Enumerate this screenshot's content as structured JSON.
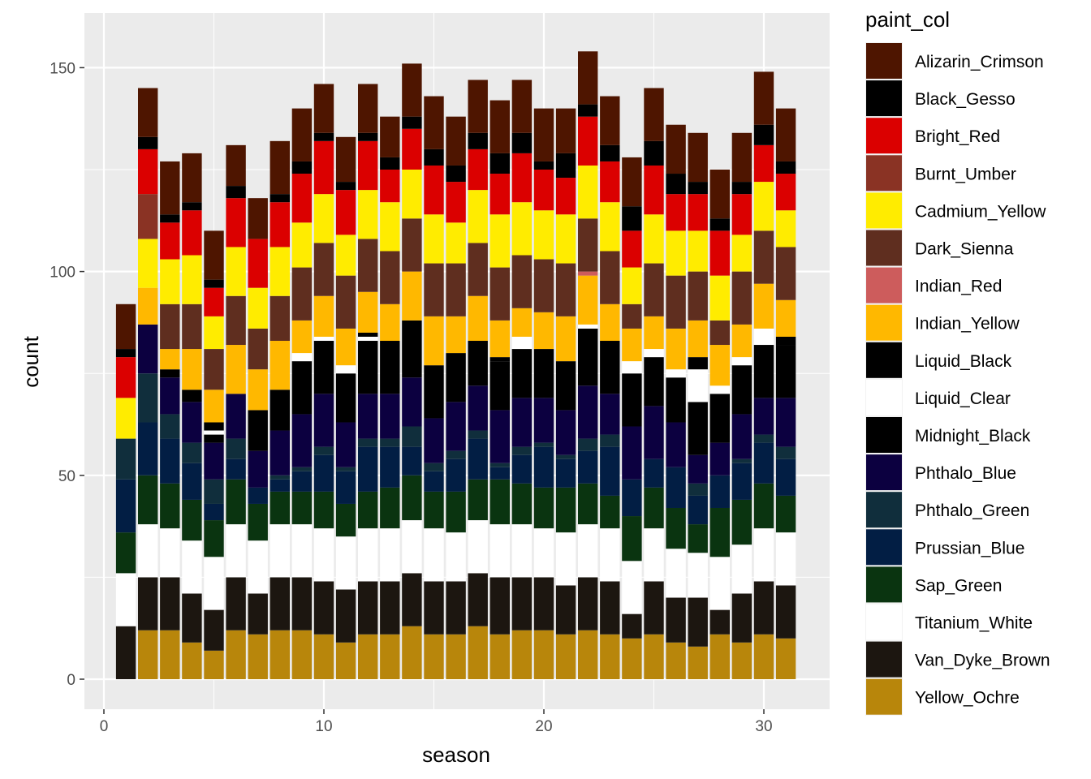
{
  "chart_data": {
    "type": "bar",
    "stacked": true,
    "xlabel": "season",
    "ylabel": "count",
    "legend_title": "paint_col",
    "legend_position": "right",
    "grid": true,
    "xlim": [
      0,
      31
    ],
    "ylim": [
      0,
      155
    ],
    "x_ticks": [
      0,
      10,
      20,
      30
    ],
    "y_ticks": [
      0,
      50,
      100,
      150
    ],
    "x_tick_labels": [
      "0",
      "10",
      "20",
      "30"
    ],
    "y_tick_labels": [
      "0",
      "50",
      "100",
      "150"
    ],
    "x": [
      1,
      2,
      3,
      4,
      5,
      6,
      7,
      8,
      9,
      10,
      11,
      12,
      13,
      14,
      15,
      16,
      17,
      18,
      19,
      20,
      21,
      22,
      23,
      24,
      25,
      26,
      27,
      28,
      29,
      30,
      31
    ],
    "series": [
      {
        "name": "Yellow_Ochre",
        "color": "#B8860B",
        "values": [
          0,
          12,
          12,
          9,
          7,
          12,
          11,
          12,
          12,
          11,
          9,
          11,
          11,
          13,
          11,
          11,
          13,
          11,
          12,
          12,
          11,
          12,
          11,
          10,
          11,
          9,
          8,
          11,
          9,
          11,
          10
        ]
      },
      {
        "name": "Van_Dyke_Brown",
        "color": "#1C1610",
        "values": [
          13,
          13,
          13,
          12,
          10,
          13,
          10,
          13,
          13,
          13,
          13,
          13,
          13,
          13,
          13,
          13,
          13,
          14,
          13,
          13,
          12,
          13,
          13,
          6,
          13,
          11,
          12,
          6,
          12,
          13,
          13
        ]
      },
      {
        "name": "Titanium_White",
        "color": "#FFFFFF",
        "values": [
          13,
          13,
          12,
          13,
          13,
          13,
          13,
          13,
          13,
          13,
          13,
          13,
          13,
          13,
          13,
          12,
          13,
          13,
          13,
          12,
          13,
          13,
          13,
          13,
          13,
          12,
          11,
          13,
          12,
          13,
          13
        ]
      },
      {
        "name": "Sap_Green",
        "color": "#0A3410",
        "values": [
          10,
          12,
          11,
          10,
          9,
          11,
          9,
          8,
          8,
          9,
          8,
          9,
          10,
          11,
          9,
          10,
          10,
          11,
          10,
          10,
          11,
          10,
          8,
          11,
          10,
          10,
          7,
          12,
          11,
          11,
          9
        ]
      },
      {
        "name": "Prussian_Blue",
        "color": "#021E44",
        "values": [
          13,
          13,
          11,
          9,
          4,
          5,
          4,
          3,
          5,
          9,
          8,
          11,
          10,
          7,
          5,
          8,
          10,
          3,
          7,
          10,
          7,
          8,
          12,
          9,
          7,
          10,
          7,
          8,
          9,
          10,
          9
        ]
      },
      {
        "name": "Phthalo_Green",
        "color": "#102E3C",
        "values": [
          10,
          12,
          6,
          5,
          6,
          5,
          0,
          1,
          1,
          2,
          1,
          2,
          2,
          5,
          2,
          2,
          2,
          1,
          2,
          1,
          1,
          3,
          3,
          0,
          0,
          0,
          3,
          0,
          1,
          2,
          3
        ]
      },
      {
        "name": "Phthalo_Blue",
        "color": "#0C0040",
        "values": [
          0,
          12,
          9,
          10,
          9,
          11,
          9,
          11,
          13,
          13,
          11,
          11,
          11,
          12,
          11,
          12,
          11,
          13,
          12,
          11,
          11,
          13,
          10,
          13,
          13,
          11,
          7,
          8,
          11,
          9,
          12
        ]
      },
      {
        "name": "Midnight_Black",
        "color": "#000000",
        "values": [
          0,
          0,
          2,
          3,
          2,
          0,
          10,
          10,
          13,
          13,
          12,
          13,
          13,
          14,
          13,
          12,
          11,
          12,
          12,
          12,
          12,
          14,
          13,
          13,
          12,
          11,
          13,
          12,
          12,
          13,
          13
        ]
      },
      {
        "name": "Liquid_Clear",
        "color": "#FFFFFF",
        "values": [
          0,
          0,
          0,
          0,
          1,
          0,
          0,
          0,
          2,
          1,
          2,
          1,
          0,
          0,
          0,
          0,
          0,
          0,
          3,
          0,
          0,
          1,
          0,
          3,
          2,
          2,
          8,
          2,
          2,
          4,
          0
        ]
      },
      {
        "name": "Liquid_Black",
        "color": "#000000",
        "values": [
          0,
          0,
          0,
          0,
          2,
          0,
          0,
          0,
          0,
          0,
          0,
          1,
          0,
          0,
          0,
          0,
          0,
          1,
          0,
          0,
          0,
          0,
          0,
          0,
          0,
          0,
          3,
          0,
          0,
          0,
          2
        ]
      },
      {
        "name": "Indian_Yellow",
        "color": "#FFB800",
        "values": [
          0,
          9,
          5,
          10,
          8,
          12,
          10,
          12,
          8,
          10,
          9,
          10,
          9,
          12,
          12,
          9,
          11,
          9,
          7,
          9,
          11,
          12,
          9,
          8,
          8,
          10,
          9,
          10,
          8,
          11,
          9
        ]
      },
      {
        "name": "Indian_Red",
        "color": "#CD5C5C",
        "values": [
          0,
          0,
          0,
          0,
          0,
          0,
          0,
          0,
          0,
          0,
          0,
          0,
          0,
          0,
          0,
          0,
          0,
          0,
          0,
          0,
          0,
          1,
          0,
          0,
          0,
          0,
          0,
          0,
          0,
          0,
          0
        ]
      },
      {
        "name": "Dark_Sienna",
        "color": "#5F2E1F",
        "values": [
          0,
          0,
          11,
          11,
          10,
          12,
          10,
          11,
          13,
          13,
          13,
          13,
          13,
          13,
          13,
          13,
          13,
          13,
          13,
          13,
          13,
          13,
          13,
          6,
          13,
          13,
          12,
          6,
          13,
          13,
          13
        ]
      },
      {
        "name": "Cadmium_Yellow",
        "color": "#FFEC00",
        "values": [
          10,
          12,
          11,
          12,
          8,
          12,
          10,
          12,
          11,
          12,
          10,
          12,
          12,
          12,
          12,
          10,
          13,
          13,
          13,
          12,
          12,
          13,
          12,
          9,
          12,
          11,
          10,
          11,
          9,
          12,
          9
        ]
      },
      {
        "name": "Burnt_Umber",
        "color": "#8A3324",
        "values": [
          0,
          11,
          0,
          0,
          0,
          0,
          0,
          0,
          0,
          0,
          0,
          0,
          0,
          0,
          0,
          0,
          0,
          0,
          0,
          0,
          0,
          0,
          0,
          0,
          0,
          0,
          0,
          0,
          0,
          0,
          0
        ]
      },
      {
        "name": "Bright_Red",
        "color": "#DB0000",
        "values": [
          10,
          11,
          9,
          11,
          7,
          12,
          12,
          11,
          12,
          13,
          11,
          12,
          8,
          10,
          12,
          10,
          10,
          10,
          12,
          10,
          9,
          12,
          10,
          9,
          12,
          9,
          9,
          11,
          10,
          9,
          9
        ]
      },
      {
        "name": "Black_Gesso",
        "color": "#000000",
        "values": [
          2,
          3,
          2,
          2,
          2,
          3,
          0,
          2,
          3,
          2,
          2,
          2,
          3,
          3,
          4,
          4,
          4,
          5,
          5,
          2,
          6,
          3,
          4,
          6,
          6,
          5,
          3,
          3,
          3,
          5,
          3
        ]
      },
      {
        "name": "Alizarin_Crimson",
        "color": "#4E1500",
        "values": [
          11,
          12,
          13,
          12,
          12,
          10,
          10,
          13,
          13,
          12,
          11,
          12,
          10,
          13,
          13,
          12,
          13,
          13,
          13,
          13,
          11,
          13,
          12,
          12,
          13,
          12,
          12,
          12,
          12,
          13,
          13
        ]
      }
    ],
    "legend_order": [
      "Alizarin_Crimson",
      "Black_Gesso",
      "Bright_Red",
      "Burnt_Umber",
      "Cadmium_Yellow",
      "Dark_Sienna",
      "Indian_Red",
      "Indian_Yellow",
      "Liquid_Black",
      "Liquid_Clear",
      "Midnight_Black",
      "Phthalo_Blue",
      "Phthalo_Green",
      "Prussian_Blue",
      "Sap_Green",
      "Titanium_White",
      "Van_Dyke_Brown",
      "Yellow_Ochre"
    ]
  },
  "colors": {
    "panel_background": "#EBEBEB",
    "grid_major": "#FFFFFF",
    "tick_text": "#4D4D4D"
  }
}
